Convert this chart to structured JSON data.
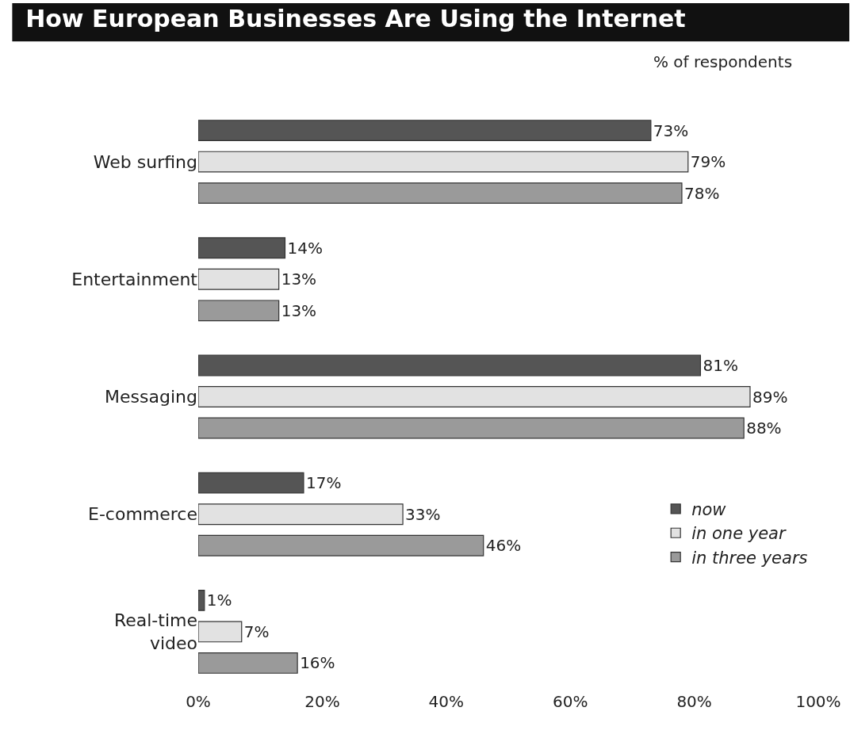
{
  "chart_data": {
    "type": "bar",
    "orientation": "horizontal",
    "title": "How European Businesses Are Using the Internet",
    "subtitle": "% of respondents",
    "categories": [
      "Web surfing",
      "Entertainment",
      "Messaging",
      "E-commerce",
      "Real-time\nvideo"
    ],
    "series": [
      {
        "name": "now",
        "color": "#555555",
        "values": [
          73,
          14,
          81,
          17,
          1
        ],
        "value_labels": [
          "73%",
          "14%",
          "81%",
          "17%",
          "1%"
        ]
      },
      {
        "name": "in one year",
        "color": "#e2e2e2",
        "values": [
          79,
          13,
          89,
          33,
          7
        ],
        "value_labels": [
          "79%",
          "13%",
          "89%",
          "33%",
          "7%"
        ]
      },
      {
        "name": "in three years",
        "color": "#9a9a9a",
        "values": [
          78,
          13,
          88,
          46,
          16
        ],
        "value_labels": [
          "78%",
          "13%",
          "88%",
          "46%",
          "16%"
        ]
      }
    ],
    "xlim": [
      0,
      100
    ],
    "xticks": [
      {
        "value": 0,
        "label": "0%"
      },
      {
        "value": 20,
        "label": "20%"
      },
      {
        "value": 40,
        "label": "40%"
      },
      {
        "value": 60,
        "label": "60%"
      },
      {
        "value": 80,
        "label": "80%"
      },
      {
        "value": 100,
        "label": "100%"
      }
    ],
    "grid": false,
    "legend": "bottom right"
  }
}
